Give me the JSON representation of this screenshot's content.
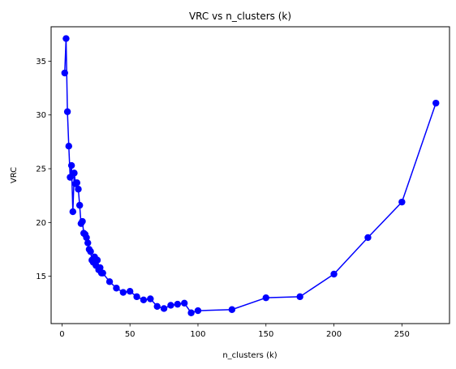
{
  "chart_data": {
    "type": "line",
    "title": "VRC vs n_clusters (k)",
    "xlabel": "n_clusters (k)",
    "ylabel": "VRC",
    "xlim": [
      -8,
      285
    ],
    "ylim": [
      10.6,
      38.2
    ],
    "xticks": [
      0,
      50,
      100,
      150,
      200,
      250
    ],
    "yticks": [
      15,
      20,
      25,
      30,
      35
    ],
    "grid": false,
    "series": [
      {
        "name": "VRC",
        "color": "#0000ff",
        "marker": "circle",
        "x": [
          2,
          3,
          4,
          5,
          6,
          7,
          8,
          9,
          10,
          11,
          12,
          13,
          14,
          15,
          16,
          17,
          18,
          19,
          20,
          21,
          22,
          23,
          24,
          25,
          26,
          27,
          28,
          29,
          30,
          35,
          40,
          45,
          50,
          55,
          60,
          65,
          70,
          75,
          80,
          85,
          90,
          95,
          100,
          125,
          150,
          175,
          200,
          225,
          250,
          275
        ],
        "y": [
          33.9,
          37.1,
          30.3,
          27.1,
          24.2,
          25.3,
          21.0,
          24.6,
          23.6,
          23.7,
          23.1,
          21.6,
          19.9,
          20.1,
          19.0,
          18.9,
          18.6,
          18.1,
          17.5,
          17.3,
          16.5,
          16.3,
          16.8,
          16.0,
          16.5,
          15.6,
          15.8,
          15.3,
          15.3,
          14.5,
          13.9,
          13.5,
          13.6,
          13.1,
          12.8,
          12.9,
          12.2,
          12.0,
          12.3,
          12.4,
          12.5,
          11.6,
          11.8,
          11.9,
          13.0,
          13.1,
          15.2,
          18.6,
          21.9,
          31.1
        ]
      }
    ]
  }
}
